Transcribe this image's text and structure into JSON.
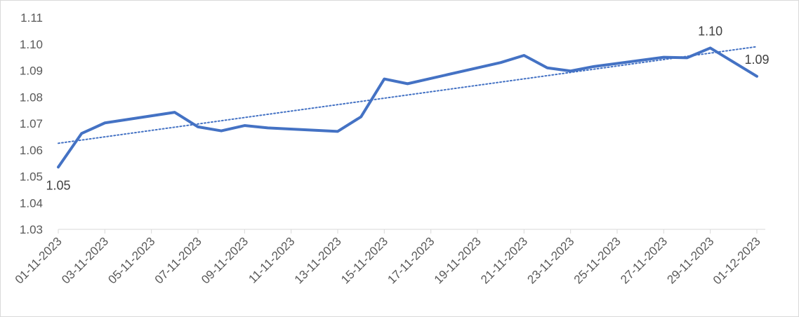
{
  "chart_data": {
    "type": "line",
    "title": "",
    "xlabel": "",
    "ylabel": "",
    "ylim": [
      1.03,
      1.11
    ],
    "y_ticks": [
      "1.03",
      "1.04",
      "1.05",
      "1.06",
      "1.07",
      "1.08",
      "1.09",
      "1.10",
      "1.11"
    ],
    "x_tick_labels": [
      "01-11-2023",
      "03-11-2023",
      "05-11-2023",
      "07-11-2023",
      "09-11-2023",
      "11-11-2023",
      "13-11-2023",
      "15-11-2023",
      "17-11-2023",
      "19-11-2023",
      "21-11-2023",
      "23-11-2023",
      "25-11-2023",
      "27-11-2023",
      "29-11-2023",
      "01-12-2023"
    ],
    "x_range": [
      "01-11-2023",
      "01-12-2023"
    ],
    "grid": false,
    "legend": "none",
    "series": [
      {
        "color": "#4472C4",
        "points": [
          {
            "x": "01-11-2023",
            "y": 1.0535
          },
          {
            "x": "02-11-2023",
            "y": 1.0662
          },
          {
            "x": "03-11-2023",
            "y": 1.0702
          },
          {
            "x": "06-11-2023",
            "y": 1.0742
          },
          {
            "x": "07-11-2023",
            "y": 1.0687
          },
          {
            "x": "08-11-2023",
            "y": 1.0672
          },
          {
            "x": "09-11-2023",
            "y": 1.0692
          },
          {
            "x": "10-11-2023",
            "y": 1.0683
          },
          {
            "x": "13-11-2023",
            "y": 1.067
          },
          {
            "x": "14-11-2023",
            "y": 1.0725
          },
          {
            "x": "15-11-2023",
            "y": 1.0868
          },
          {
            "x": "16-11-2023",
            "y": 1.085
          },
          {
            "x": "20-11-2023",
            "y": 1.093
          },
          {
            "x": "21-11-2023",
            "y": 1.0957
          },
          {
            "x": "22-11-2023",
            "y": 1.091
          },
          {
            "x": "23-11-2023",
            "y": 1.0898
          },
          {
            "x": "24-11-2023",
            "y": 1.0915
          },
          {
            "x": "27-11-2023",
            "y": 1.095
          },
          {
            "x": "28-11-2023",
            "y": 1.0948
          },
          {
            "x": "29-11-2023",
            "y": 1.0985
          },
          {
            "x": "01-12-2023",
            "y": 1.0878
          }
        ]
      }
    ],
    "trendline": {
      "style": "dotted",
      "color": "#4472C4",
      "start": {
        "x": "01-11-2023",
        "y": 1.0625
      },
      "end": {
        "x": "01-12-2023",
        "y": 1.099
      }
    },
    "data_labels": [
      {
        "text": "1.05",
        "x": "01-11-2023",
        "y": 1.0535,
        "position": "below"
      },
      {
        "text": "1.10",
        "x": "29-11-2023",
        "y": 1.0985,
        "position": "above"
      },
      {
        "text": "1.09",
        "x": "01-12-2023",
        "y": 1.0878,
        "position": "above"
      }
    ]
  }
}
